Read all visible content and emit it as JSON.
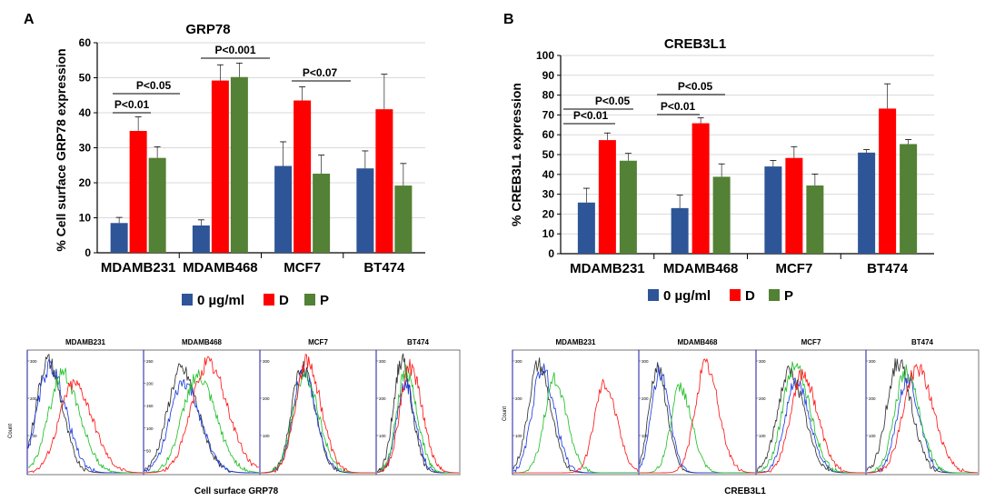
{
  "legend_labels": [
    "0 µg/ml",
    "D",
    "P"
  ],
  "colors": {
    "ctrl": "#2E5597",
    "d": "#FF0000",
    "p": "#538135",
    "black": "#000000",
    "flowBlack": "#333333",
    "flowBlue": "#1f3fe0",
    "flowGreen": "#22c02a",
    "flowRed": "#ff1a1a",
    "grid": "#d9d9d9"
  },
  "chart_data": [
    {
      "panel": "A",
      "type": "bar",
      "title": "GRP78",
      "ylabel": "% Cell surface GRP78 expression",
      "categories": [
        "MDAMB231",
        "MDAMB468",
        "MCF7",
        "BT474"
      ],
      "ylim": [
        0,
        60
      ],
      "yticks": [
        0,
        10,
        20,
        30,
        40,
        50,
        60
      ],
      "series": [
        {
          "name": "0 µg/ml",
          "values": [
            8.5,
            7.8,
            24.8,
            24.1
          ],
          "errors": [
            1.6,
            1.6,
            6.9,
            5.0
          ]
        },
        {
          "name": "D",
          "values": [
            34.8,
            49.2,
            43.5,
            41.0
          ],
          "errors": [
            4.0,
            4.5,
            3.9,
            10.0
          ]
        },
        {
          "name": "P",
          "values": [
            27.1,
            50.2,
            22.6,
            19.2
          ],
          "errors": [
            3.2,
            4.0,
            5.3,
            6.3
          ]
        }
      ],
      "significance": [
        {
          "label": "P<0.01",
          "category": 0,
          "from": "0 µg/ml",
          "to": "D"
        },
        {
          "label": "P<0.05",
          "category": 0,
          "from": "0 µg/ml",
          "to": "P"
        },
        {
          "label": "P<0.001",
          "category": 1,
          "from": "0 µg/ml",
          "to": "P"
        },
        {
          "label": "P<0.07",
          "category": 2,
          "from": "0 µg/ml",
          "to": "P"
        }
      ]
    },
    {
      "panel": "B",
      "type": "bar",
      "title": "CREB3L1",
      "ylabel": "% CREB3L1 expression",
      "categories": [
        "MDAMB231",
        "MDAMB468",
        "MCF7",
        "BT474"
      ],
      "ylim": [
        0,
        100
      ],
      "yticks": [
        0,
        10,
        20,
        30,
        40,
        50,
        60,
        70,
        80,
        90,
        100
      ],
      "series": [
        {
          "name": "0 µg/ml",
          "values": [
            25.8,
            23.0,
            44.0,
            51.0
          ],
          "errors": [
            7.2,
            6.5,
            3.0,
            1.5
          ]
        },
        {
          "name": "D",
          "values": [
            57.3,
            65.8,
            48.3,
            73.2
          ],
          "errors": [
            3.6,
            2.7,
            5.7,
            12.5
          ]
        },
        {
          "name": "P",
          "values": [
            46.9,
            38.8,
            34.4,
            55.3
          ],
          "errors": [
            3.7,
            6.5,
            5.8,
            2.3
          ]
        }
      ],
      "significance": [
        {
          "label": "P<0.01",
          "category": 0,
          "from": "0 µg/ml",
          "to": "D"
        },
        {
          "label": "P<0.05",
          "category": 0,
          "from": "0 µg/ml",
          "to": "P"
        },
        {
          "label": "P<0.01",
          "category": 1,
          "from": "0 µg/ml",
          "to": "D"
        },
        {
          "label": "P<0.05",
          "category": 1,
          "from": "0 µg/ml",
          "to": "P"
        }
      ]
    },
    {
      "panel": "A-flow",
      "type": "line",
      "xlabel": "Cell surface GRP78",
      "ylabel": "Count",
      "subplots": [
        {
          "name": "MDAMB231",
          "ylim": [
            0,
            300
          ],
          "yticks": [
            0,
            100,
            200,
            300
          ],
          "curves": [
            {
              "color": "black",
              "mu": 0.17,
              "sd": 0.1,
              "peak": 300
            },
            {
              "color": "blue",
              "mu": 0.19,
              "sd": 0.11,
              "peak": 285
            },
            {
              "color": "green",
              "mu": 0.3,
              "sd": 0.12,
              "peak": 265
            },
            {
              "color": "red",
              "mu": 0.4,
              "sd": 0.13,
              "peak": 240
            }
          ]
        },
        {
          "name": "MDAMB468",
          "ylim": [
            0,
            250
          ],
          "yticks": [
            0,
            50,
            100,
            150,
            200,
            250
          ],
          "curves": [
            {
              "color": "black",
              "mu": 0.32,
              "sd": 0.12,
              "peak": 230
            },
            {
              "color": "blue",
              "mu": 0.34,
              "sd": 0.12,
              "peak": 200
            },
            {
              "color": "green",
              "mu": 0.46,
              "sd": 0.13,
              "peak": 215
            },
            {
              "color": "red",
              "mu": 0.55,
              "sd": 0.14,
              "peak": 245
            }
          ]
        },
        {
          "name": "MCF7",
          "ylim": [
            0,
            300
          ],
          "yticks": [
            0,
            100,
            200,
            300
          ],
          "curves": [
            {
              "color": "black",
              "mu": 0.36,
              "sd": 0.09,
              "peak": 285
            },
            {
              "color": "blue",
              "mu": 0.37,
              "sd": 0.09,
              "peak": 270
            },
            {
              "color": "green",
              "mu": 0.38,
              "sd": 0.1,
              "peak": 260
            },
            {
              "color": "red",
              "mu": 0.4,
              "sd": 0.1,
              "peak": 300
            }
          ]
        },
        {
          "name": "BT474",
          "ylim": [
            0,
            300
          ],
          "yticks": [
            0,
            100,
            200,
            300
          ],
          "curves": [
            {
              "color": "black",
              "mu": 0.3,
              "sd": 0.1,
              "peak": 300
            },
            {
              "color": "blue",
              "mu": 0.34,
              "sd": 0.1,
              "peak": 240
            },
            {
              "color": "green",
              "mu": 0.35,
              "sd": 0.11,
              "peak": 270
            },
            {
              "color": "red",
              "mu": 0.4,
              "sd": 0.12,
              "peak": 285
            }
          ]
        }
      ]
    },
    {
      "panel": "B-flow",
      "type": "line",
      "xlabel": "CREB3L1",
      "ylabel": "Count",
      "subplots": [
        {
          "name": "MDAMB231",
          "ylim": [
            0,
            300
          ],
          "yticks": [
            0,
            100,
            200,
            300
          ],
          "curves": [
            {
              "color": "black",
              "mu": 0.2,
              "sd": 0.08,
              "peak": 290
            },
            {
              "color": "blue",
              "mu": 0.23,
              "sd": 0.08,
              "peak": 280
            },
            {
              "color": "green",
              "mu": 0.33,
              "sd": 0.08,
              "peak": 250
            },
            {
              "color": "red",
              "mu": 0.73,
              "sd": 0.08,
              "peak": 240
            }
          ]
        },
        {
          "name": "MDAMB468",
          "ylim": [
            0,
            300
          ],
          "yticks": [
            0,
            100,
            200,
            300
          ],
          "curves": [
            {
              "color": "black",
              "mu": 0.15,
              "sd": 0.07,
              "peak": 280
            },
            {
              "color": "blue",
              "mu": 0.17,
              "sd": 0.07,
              "peak": 270
            },
            {
              "color": "green",
              "mu": 0.35,
              "sd": 0.08,
              "peak": 230
            },
            {
              "color": "red",
              "mu": 0.57,
              "sd": 0.09,
              "peak": 290
            }
          ]
        },
        {
          "name": "MCF7",
          "ylim": [
            0,
            300
          ],
          "yticks": [
            0,
            100,
            200,
            300
          ],
          "curves": [
            {
              "color": "black",
              "mu": 0.3,
              "sd": 0.11,
              "peak": 270
            },
            {
              "color": "blue",
              "mu": 0.36,
              "sd": 0.1,
              "peak": 245
            },
            {
              "color": "green",
              "mu": 0.35,
              "sd": 0.11,
              "peak": 290
            },
            {
              "color": "red",
              "mu": 0.42,
              "sd": 0.11,
              "peak": 265
            }
          ]
        },
        {
          "name": "BT474",
          "ylim": [
            0,
            300
          ],
          "yticks": [
            0,
            100,
            200,
            300
          ],
          "curves": [
            {
              "color": "black",
              "mu": 0.28,
              "sd": 0.1,
              "peak": 295
            },
            {
              "color": "blue",
              "mu": 0.36,
              "sd": 0.09,
              "peak": 250
            },
            {
              "color": "green",
              "mu": 0.35,
              "sd": 0.1,
              "peak": 270
            },
            {
              "color": "red",
              "mu": 0.45,
              "sd": 0.12,
              "peak": 280
            }
          ]
        }
      ]
    }
  ]
}
